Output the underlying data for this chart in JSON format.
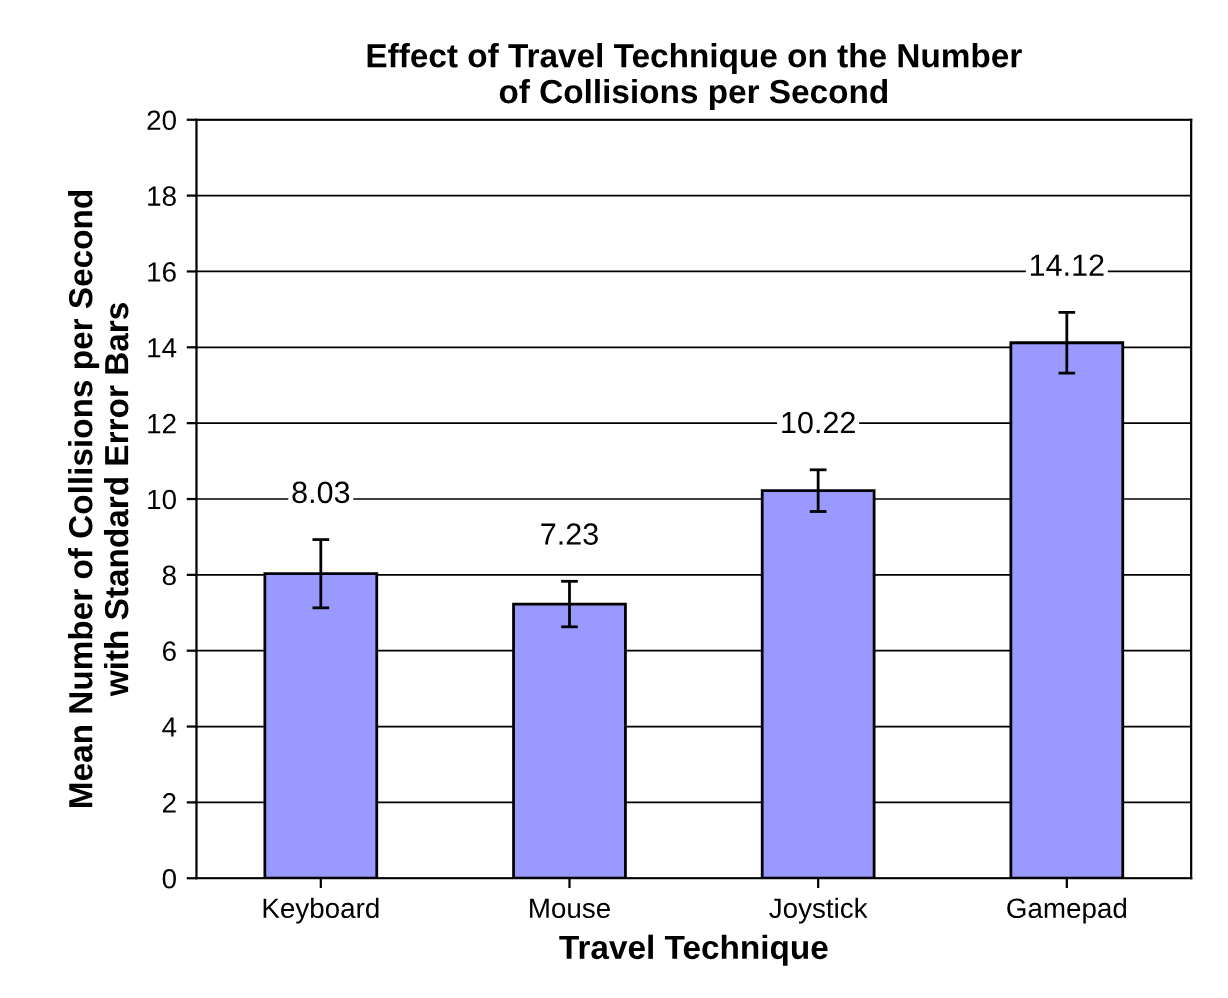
{
  "chart_data": {
    "type": "bar",
    "title": "Effect of Travel Technique on the Number\nof Collisions per Second",
    "xlabel": "Travel Technique",
    "ylabel": "Mean Number of Collisions per Second\nwith Standard Error Bars",
    "categories": [
      "Keyboard",
      "Mouse",
      "Joystick",
      "Gamepad"
    ],
    "values": [
      8.03,
      7.23,
      10.22,
      14.12
    ],
    "errors": [
      0.9,
      0.6,
      0.55,
      0.8
    ],
    "color": "#9999ff",
    "data_labels": true,
    "ylim": [
      0,
      20
    ],
    "yticks": [
      0,
      2,
      4,
      6,
      8,
      10,
      12,
      14,
      16,
      18,
      20
    ],
    "grid": "y"
  }
}
